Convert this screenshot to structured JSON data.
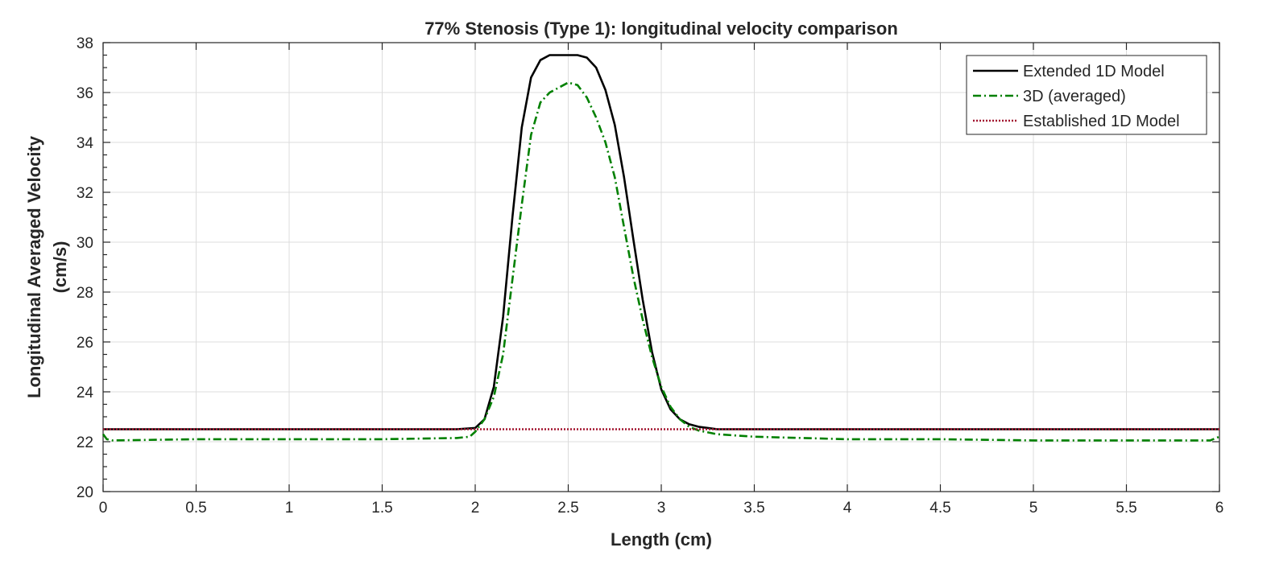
{
  "chart_data": {
    "type": "line",
    "title": "77% Stenosis (Type 1): longitudinal velocity comparison",
    "xlabel": "Length (cm)",
    "ylabel_lines": [
      "Longitudinal Averaged Velocity",
      "(cm/s)"
    ],
    "xlim": [
      0,
      6
    ],
    "ylim": [
      20,
      38
    ],
    "xticks": [
      0,
      0.5,
      1,
      1.5,
      2,
      2.5,
      3,
      3.5,
      4,
      4.5,
      5,
      5.5,
      6
    ],
    "xtick_labels": [
      "0",
      "0.5",
      "1",
      "1.5",
      "2",
      "2.5",
      "3",
      "3.5",
      "4",
      "4.5",
      "5",
      "5.5",
      "6"
    ],
    "yticks": [
      20,
      22,
      24,
      26,
      28,
      30,
      32,
      34,
      36,
      38
    ],
    "ytick_labels": [
      "20",
      "22",
      "24",
      "26",
      "28",
      "30",
      "32",
      "34",
      "36",
      "38"
    ],
    "grid": true,
    "legend_position": "top-right",
    "series": [
      {
        "name": "Extended 1D Model",
        "color": "#000000",
        "style": "solid",
        "x": [
          0,
          0.5,
          1,
          1.5,
          1.9,
          2.0,
          2.05,
          2.1,
          2.15,
          2.2,
          2.25,
          2.3,
          2.35,
          2.4,
          2.45,
          2.5,
          2.55,
          2.6,
          2.65,
          2.7,
          2.75,
          2.8,
          2.85,
          2.9,
          2.95,
          3.0,
          3.05,
          3.1,
          3.15,
          3.2,
          3.25,
          3.3,
          3.5,
          4,
          4.5,
          5,
          5.5,
          6
        ],
        "values": [
          22.5,
          22.5,
          22.5,
          22.5,
          22.5,
          22.55,
          22.9,
          24.2,
          27.0,
          31.0,
          34.6,
          36.6,
          37.3,
          37.5,
          37.5,
          37.5,
          37.5,
          37.4,
          37.0,
          36.1,
          34.7,
          32.6,
          30.1,
          27.7,
          25.6,
          24.1,
          23.3,
          22.9,
          22.7,
          22.6,
          22.55,
          22.5,
          22.5,
          22.5,
          22.5,
          22.5,
          22.5,
          22.5
        ]
      },
      {
        "name": "3D (averaged)",
        "color": "#008000",
        "style": "dashdot",
        "x": [
          0,
          0.02,
          0.05,
          0.5,
          1,
          1.5,
          1.9,
          1.97,
          2.0,
          2.05,
          2.1,
          2.15,
          2.2,
          2.25,
          2.3,
          2.35,
          2.4,
          2.45,
          2.5,
          2.55,
          2.6,
          2.65,
          2.7,
          2.75,
          2.8,
          2.85,
          2.9,
          2.95,
          3.0,
          3.05,
          3.1,
          3.15,
          3.2,
          3.3,
          3.5,
          4,
          4.5,
          5,
          5.5,
          5.95,
          6
        ],
        "values": [
          22.3,
          22.1,
          22.05,
          22.1,
          22.1,
          22.1,
          22.15,
          22.2,
          22.4,
          22.9,
          23.8,
          25.5,
          28.5,
          31.5,
          34.3,
          35.6,
          36.0,
          36.2,
          36.4,
          36.3,
          35.8,
          35.0,
          34.0,
          32.6,
          30.6,
          28.6,
          26.9,
          25.4,
          24.2,
          23.4,
          22.9,
          22.6,
          22.45,
          22.3,
          22.2,
          22.1,
          22.1,
          22.05,
          22.05,
          22.05,
          22.2
        ]
      },
      {
        "name": "Established 1D Model",
        "color": "#a2142f",
        "style": "dotted",
        "x": [
          0,
          6
        ],
        "values": [
          22.5,
          22.5
        ]
      }
    ]
  }
}
